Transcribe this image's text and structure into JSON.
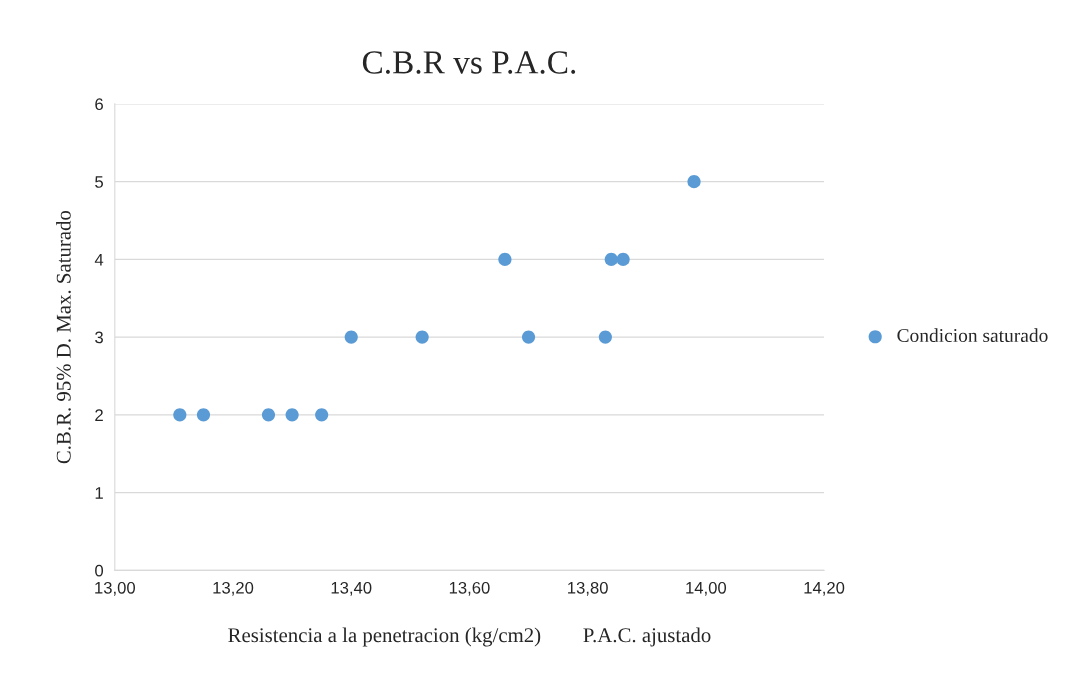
{
  "chart_data": {
    "type": "scatter",
    "title": "C.B.R vs P.A.C.",
    "xlabel": "Resistencia a la penetracion (kg/cm2)        P.A.C. ajustado",
    "ylabel": "C.B.R. 95% D. Max. Saturado",
    "series": [
      {
        "name": "Condicion saturado",
        "color": "#5b9bd5",
        "x": [
          13.11,
          13.15,
          13.26,
          13.3,
          13.35,
          13.4,
          13.52,
          13.66,
          13.7,
          13.83,
          13.84,
          13.86,
          13.98
        ],
        "values": [
          2,
          2,
          2,
          2,
          2,
          3,
          3,
          4,
          3,
          3,
          4,
          4,
          5
        ]
      }
    ],
    "xlim": [
      13.0,
      14.2
    ],
    "xticks": [
      {
        "value": 13.0,
        "label": "13,00"
      },
      {
        "value": 13.2,
        "label": "13,20"
      },
      {
        "value": 13.4,
        "label": "13,40"
      },
      {
        "value": 13.6,
        "label": "13,60"
      },
      {
        "value": 13.8,
        "label": "13,80"
      },
      {
        "value": 14.0,
        "label": "14,00"
      },
      {
        "value": 14.2,
        "label": "14,20"
      }
    ],
    "ylim": [
      0,
      6
    ],
    "yticks": [
      0,
      1,
      2,
      3,
      4,
      5,
      6
    ],
    "grid": "y",
    "legend": "right",
    "marker": "circle"
  }
}
